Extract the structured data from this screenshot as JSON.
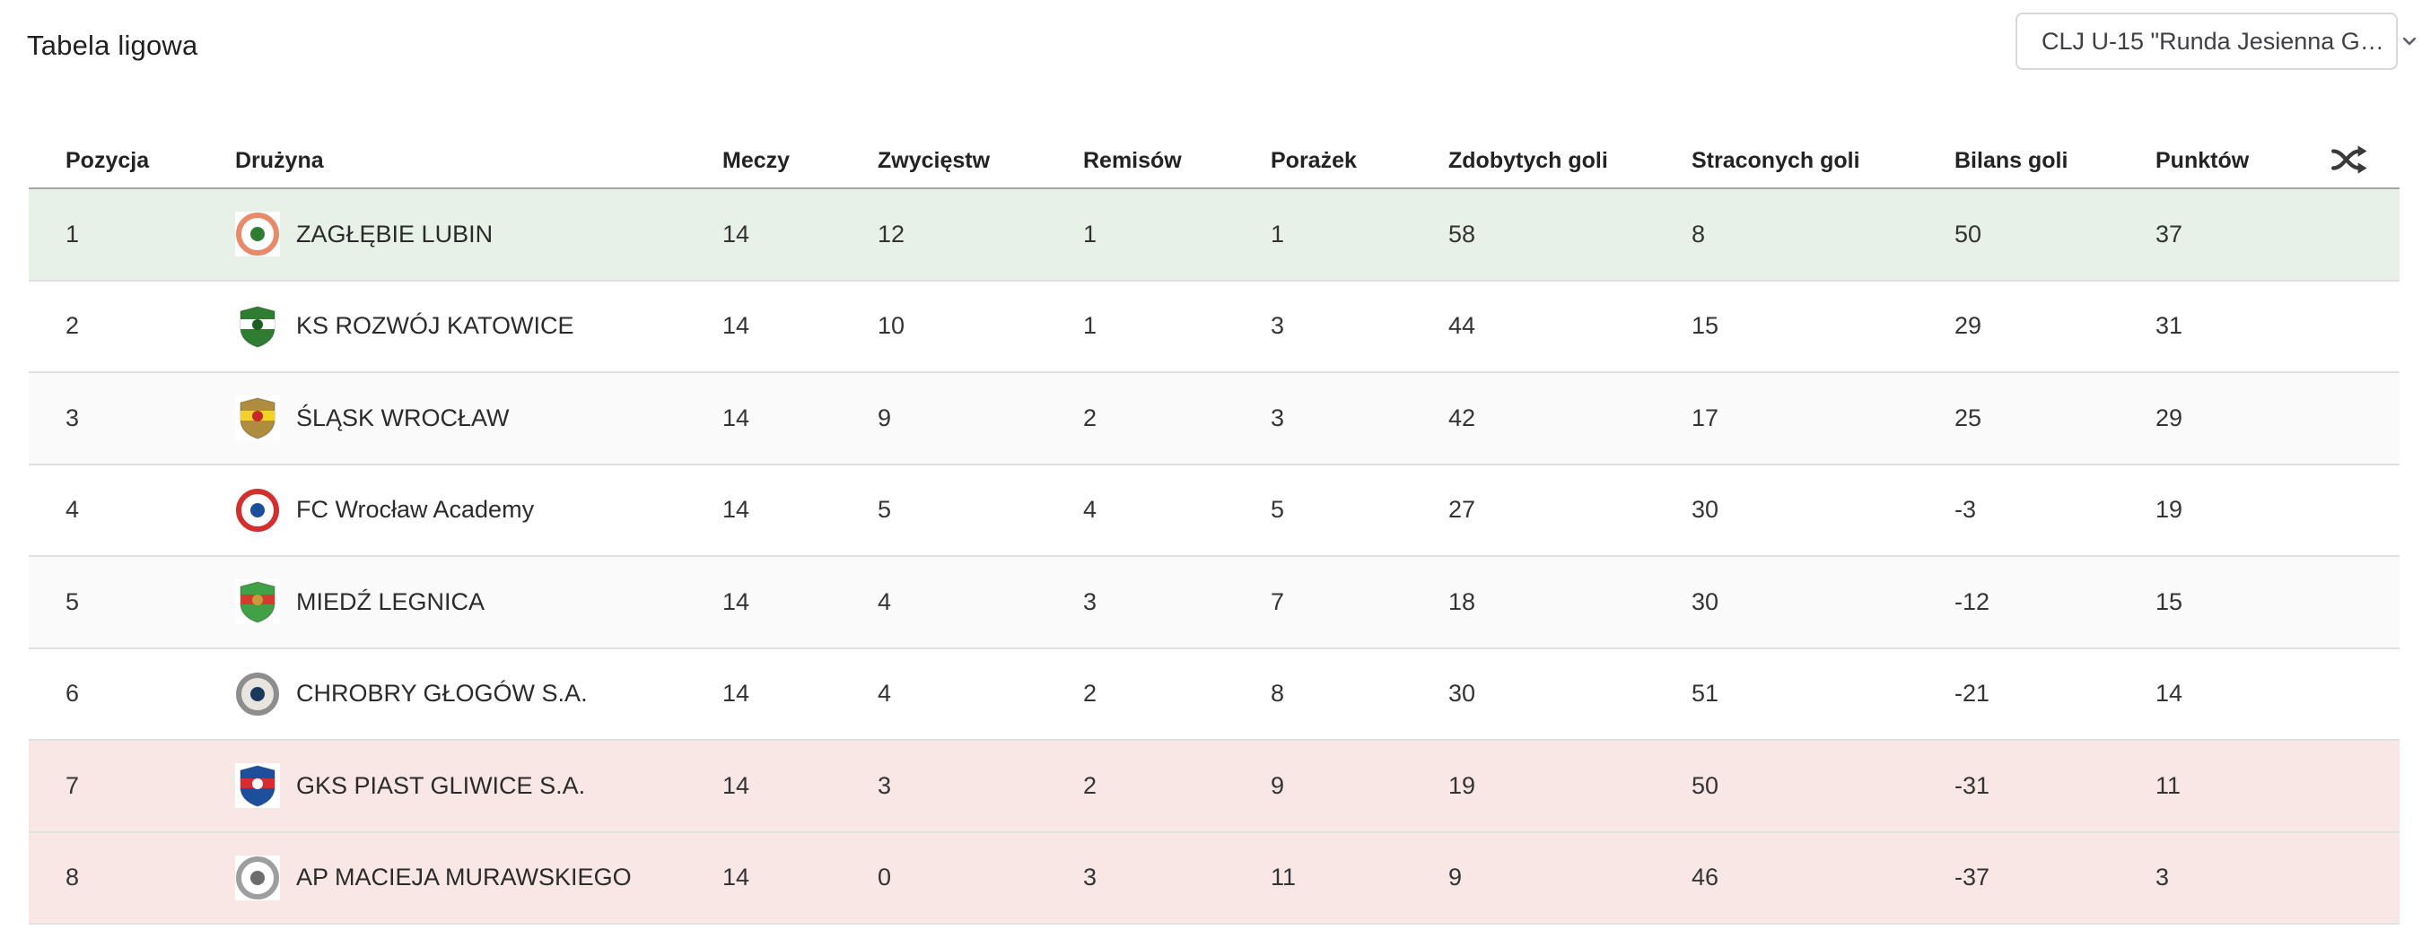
{
  "page": {
    "title": "Tabela ligowa"
  },
  "season_select": {
    "value": "CLJ U-15 \"Runda Jesienna G…",
    "chevron_icon": "chevron-down"
  },
  "table": {
    "columns": [
      "Pozycja",
      "Drużyna",
      "Meczy",
      "Zwycięstw",
      "Remisów",
      "Porażek",
      "Zdobytych goli",
      "Straconych goli",
      "Bilans goli",
      "Punktów"
    ],
    "shuffle_icon": "shuffle",
    "rows": [
      {
        "position": "1",
        "team": "ZAGŁĘBIE LUBIN",
        "matches": "14",
        "wins": "12",
        "draws": "1",
        "losses": "1",
        "goals_for": "58",
        "goals_against": "8",
        "goal_diff": "50",
        "points": "37",
        "highlight": "promotion",
        "crest": {
          "type": "circle",
          "colors": [
            "#e8896a",
            "#ffffff",
            "#2e7d32"
          ]
        }
      },
      {
        "position": "2",
        "team": "KS ROZWÓJ KATOWICE",
        "matches": "14",
        "wins": "10",
        "draws": "1",
        "losses": "3",
        "goals_for": "44",
        "goals_against": "15",
        "goal_diff": "29",
        "points": "31",
        "highlight": "none",
        "crest": {
          "type": "shield",
          "colors": [
            "#2e7d32",
            "#ffffff",
            "#1b5e20"
          ]
        }
      },
      {
        "position": "3",
        "team": "ŚLĄSK WROCŁAW",
        "matches": "14",
        "wins": "9",
        "draws": "2",
        "losses": "3",
        "goals_for": "42",
        "goals_against": "17",
        "goal_diff": "25",
        "points": "29",
        "highlight": "none",
        "crest": {
          "type": "shield",
          "colors": [
            "#b08d3e",
            "#f2d12c",
            "#c62828"
          ]
        }
      },
      {
        "position": "4",
        "team": "FC Wrocław Academy",
        "matches": "14",
        "wins": "5",
        "draws": "4",
        "losses": "5",
        "goals_for": "27",
        "goals_against": "30",
        "goal_diff": "-3",
        "points": "19",
        "highlight": "none",
        "crest": {
          "type": "circle",
          "colors": [
            "#d32f2f",
            "#ffffff",
            "#1a4f9c"
          ]
        }
      },
      {
        "position": "5",
        "team": "MIEDŹ LEGNICA",
        "matches": "14",
        "wins": "4",
        "draws": "3",
        "losses": "7",
        "goals_for": "18",
        "goals_against": "30",
        "goal_diff": "-12",
        "points": "15",
        "highlight": "none",
        "crest": {
          "type": "shield",
          "colors": [
            "#42a047",
            "#d23b2f",
            "#c79b3b"
          ]
        }
      },
      {
        "position": "6",
        "team": "CHROBRY GŁOGÓW S.A.",
        "matches": "14",
        "wins": "4",
        "draws": "2",
        "losses": "8",
        "goals_for": "30",
        "goals_against": "51",
        "goal_diff": "-21",
        "points": "14",
        "highlight": "none",
        "crest": {
          "type": "circle",
          "colors": [
            "#8d8d8d",
            "#e8e4de",
            "#1a3a5c"
          ]
        }
      },
      {
        "position": "7",
        "team": "GKS PIAST GLIWICE S.A.",
        "matches": "14",
        "wins": "3",
        "draws": "2",
        "losses": "9",
        "goals_for": "19",
        "goals_against": "50",
        "goal_diff": "-31",
        "points": "11",
        "highlight": "relegation",
        "crest": {
          "type": "shield",
          "colors": [
            "#1e4f9c",
            "#d32f2f",
            "#ffffff"
          ]
        }
      },
      {
        "position": "8",
        "team": "AP MACIEJA MURAWSKIEGO",
        "matches": "14",
        "wins": "0",
        "draws": "3",
        "losses": "11",
        "goals_for": "9",
        "goals_against": "46",
        "goal_diff": "-37",
        "points": "3",
        "highlight": "relegation",
        "crest": {
          "type": "circle",
          "colors": [
            "#9e9e9e",
            "#ffffff",
            "#6d6d6d"
          ]
        }
      }
    ]
  },
  "colors": {
    "promotion_row_bg": "#e7f1e8",
    "relegation_row_bg": "#f9e7e5",
    "zebra_row_bg": "#fafafa",
    "row_border": "#e0e0e0",
    "header_border": "#a6a6a6",
    "title_text": "#212121",
    "cell_text": "#343434",
    "dropdown_border": "#d7d7d7",
    "icon_color": "#3a3a3a"
  }
}
